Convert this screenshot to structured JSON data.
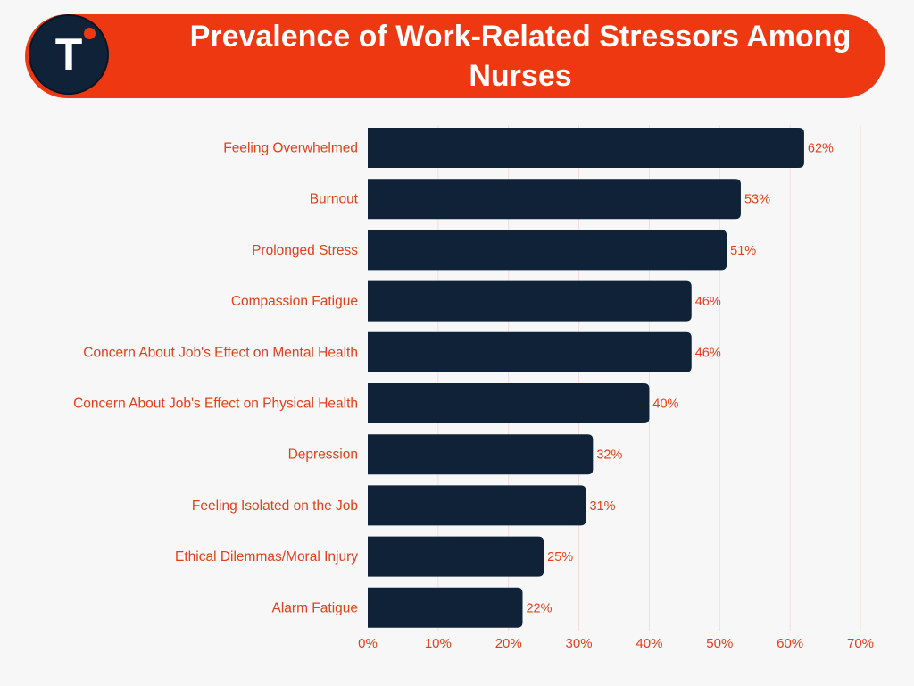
{
  "header": {
    "title": "Prevalence of Work-Related Stressors Among Nurses",
    "logo_letter": "T"
  },
  "colors": {
    "accent": "#ee3811",
    "bar": "#0f2238",
    "label": "#e0401a",
    "grid": "#f3dcdc",
    "background": "#f7f7f7"
  },
  "chart_data": {
    "type": "bar",
    "orientation": "horizontal",
    "categories": [
      "Feeling Overwhelmed",
      "Burnout",
      "Prolonged Stress",
      "Compassion Fatigue",
      "Concern About Job's Effect on Mental Health",
      "Concern About Job's Effect on Physical Health",
      "Depression",
      "Feeling Isolated on the Job",
      "Ethical Dilemmas/Moral Injury",
      "Alarm Fatigue"
    ],
    "values": [
      62,
      53,
      51,
      46,
      46,
      40,
      32,
      31,
      25,
      22
    ],
    "value_labels": [
      "62%",
      "53%",
      "51%",
      "46%",
      "46%",
      "40%",
      "32%",
      "31%",
      "25%",
      "22%"
    ],
    "xlim": [
      0,
      70
    ],
    "xticks": [
      0,
      10,
      20,
      30,
      40,
      50,
      60,
      70
    ],
    "xtick_labels": [
      "0%",
      "10%",
      "20%",
      "30%",
      "40%",
      "50%",
      "60%",
      "70%"
    ],
    "grid": true,
    "legend": false
  }
}
